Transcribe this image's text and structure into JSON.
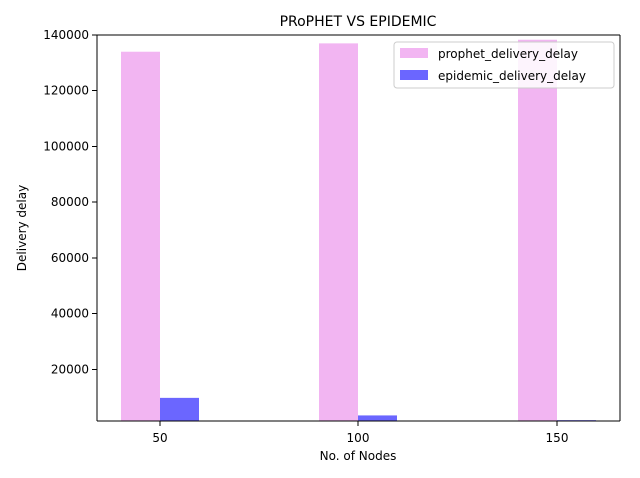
{
  "chart_data": {
    "type": "bar",
    "title": "PRoPHET VS EPIDEMIC",
    "xlabel": "No. of Nodes",
    "ylabel": "Delivery delay",
    "categories": [
      "50",
      "100",
      "150"
    ],
    "series": [
      {
        "name": "prophet_delivery_delay",
        "color": "#f2b5f2",
        "values": [
          134000,
          137000,
          138300
        ]
      },
      {
        "name": "epidemic_delivery_delay",
        "color": "#6b66ff",
        "values": [
          9800,
          3500,
          1800
        ]
      }
    ],
    "ylim": [
      1500,
      140000
    ],
    "yticks": [
      20000,
      40000,
      60000,
      80000,
      100000,
      120000,
      140000
    ],
    "ytick_labels": [
      "20000",
      "40000",
      "60000",
      "80000",
      "100000",
      "120000",
      "140000"
    ],
    "legend_position": "top-right",
    "grid": false
  }
}
